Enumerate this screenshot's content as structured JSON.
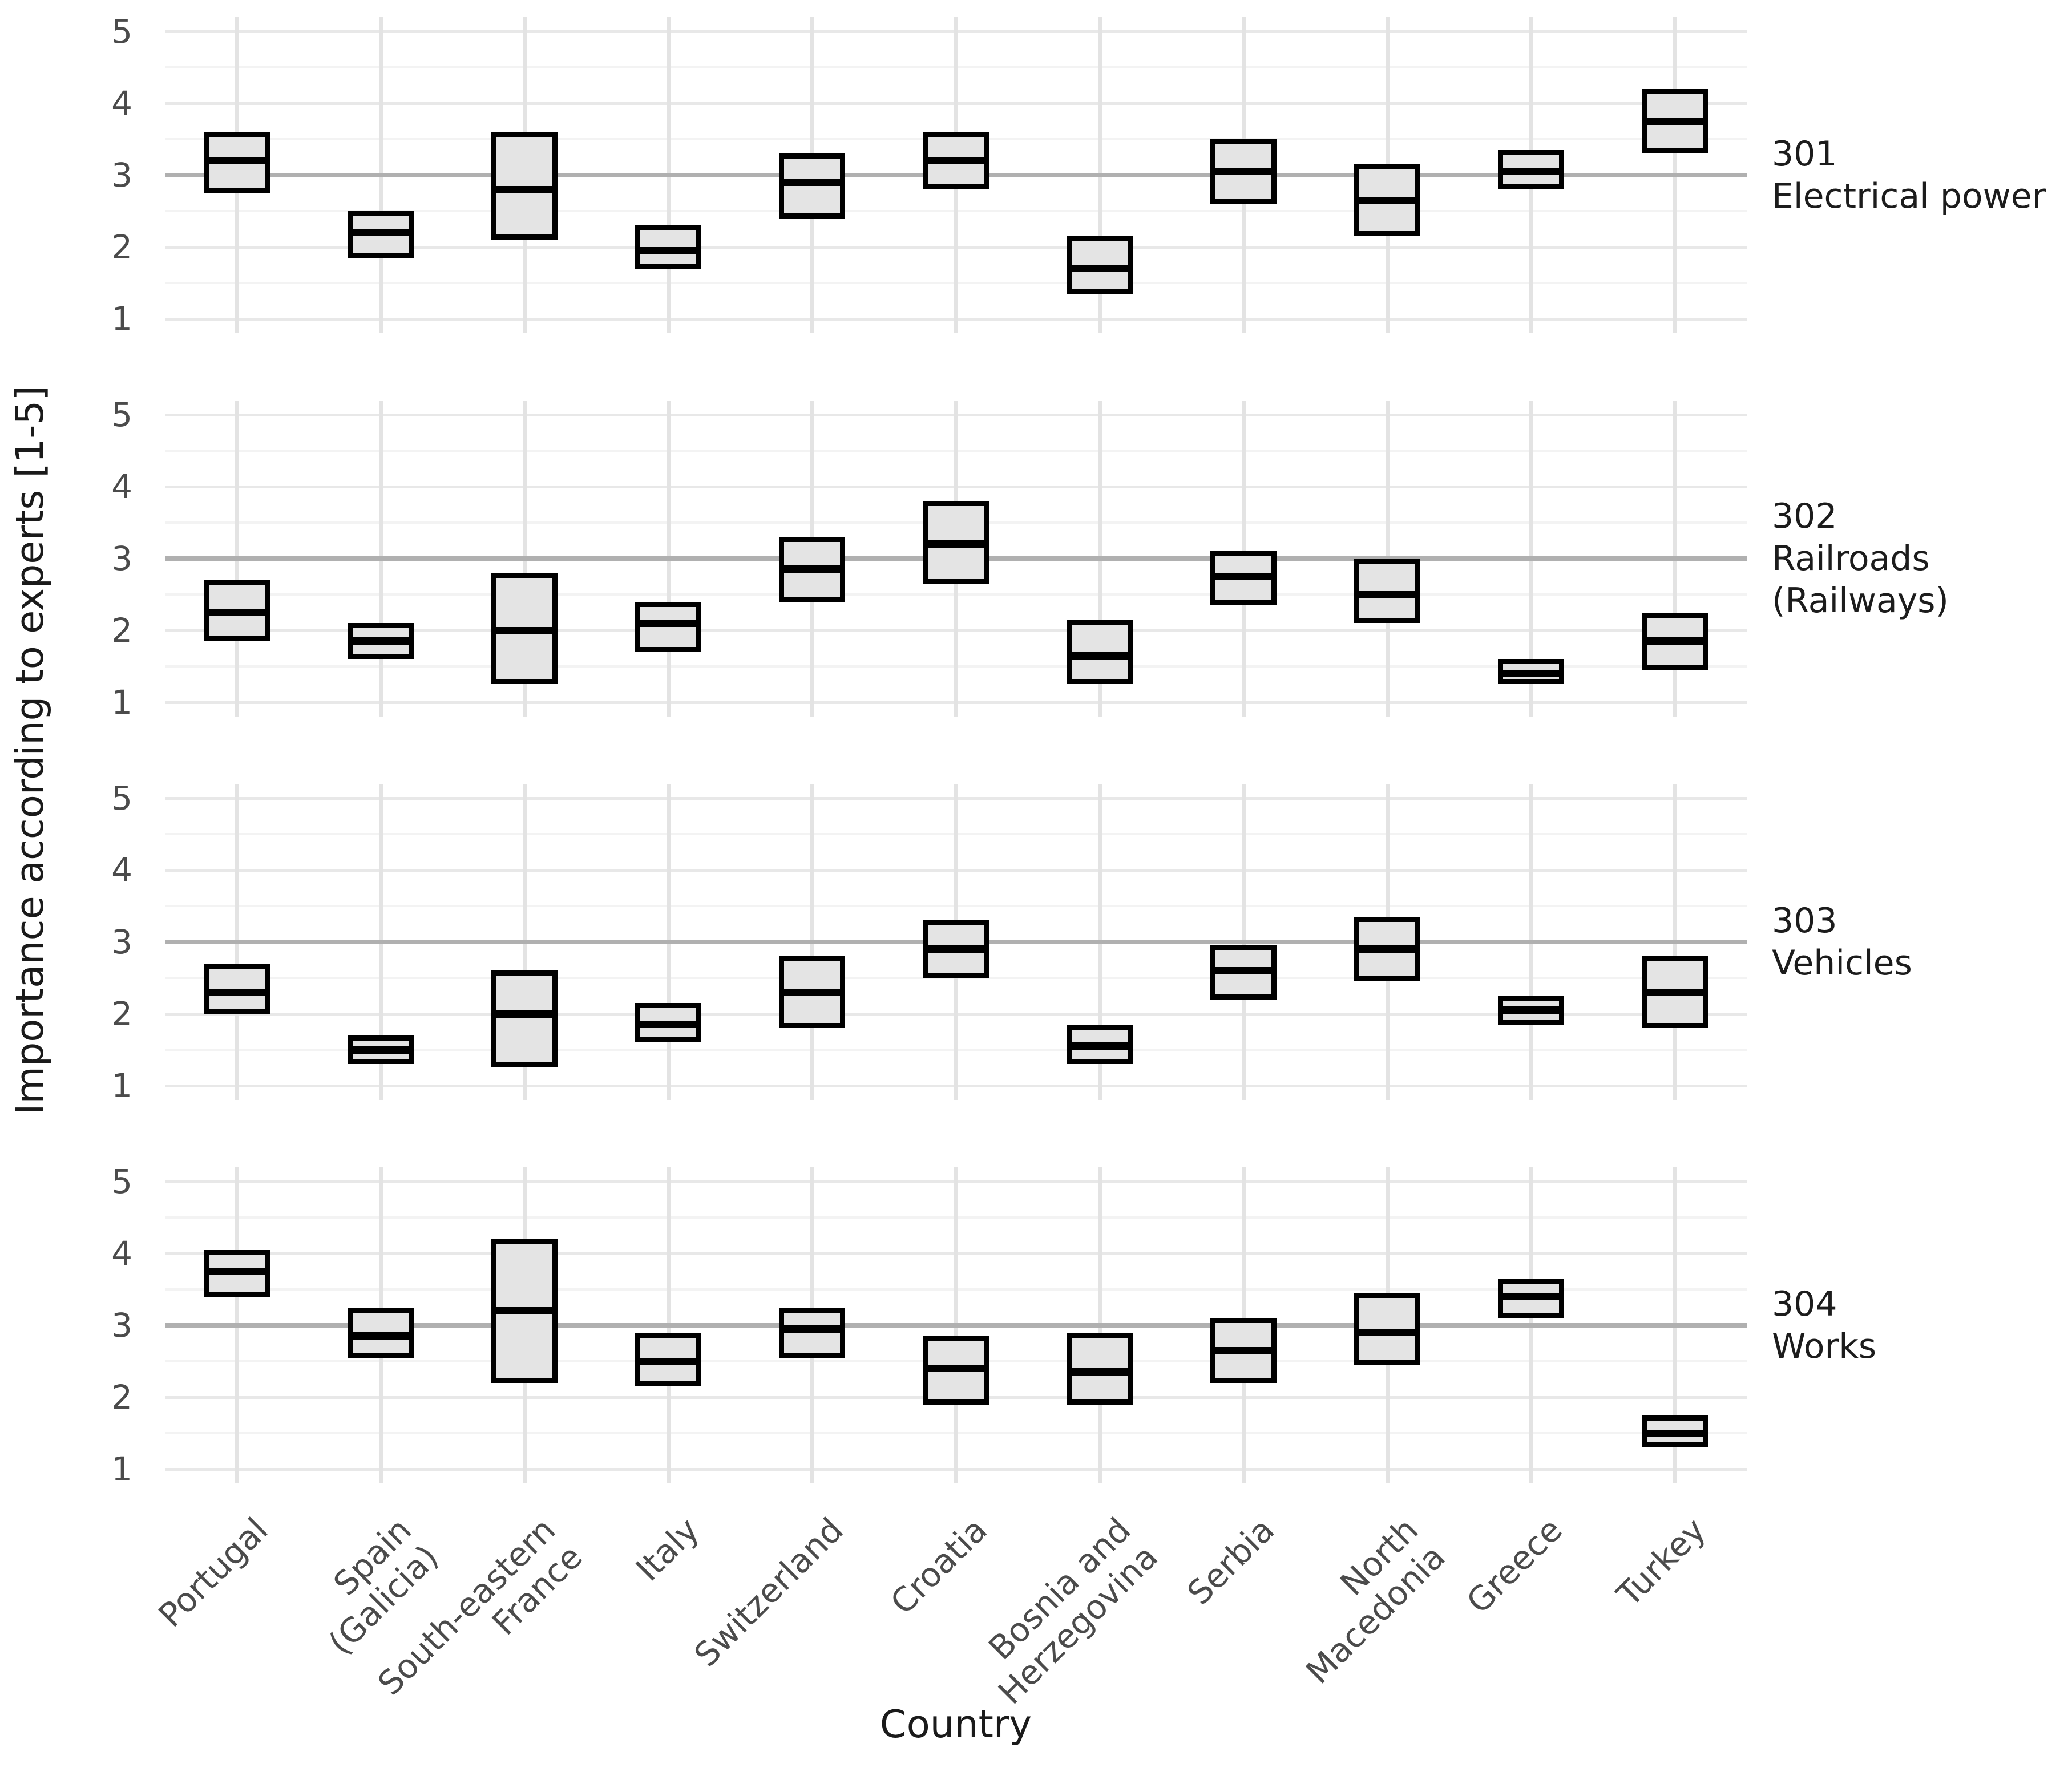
{
  "axes": {
    "y_title": "Importance according to experts [1-5]",
    "x_title": "Country",
    "y_tick_labels": [
      "5",
      "4",
      "3",
      "2",
      "1"
    ]
  },
  "chart_data": {
    "type": "crossbar",
    "description": "Faceted crossbar chart: median importance (thick line) with lower/upper range boxes, per country, one panel per infrastructure category; gray horizontal reference line at 3 in every panel.",
    "ylim": [
      1,
      5
    ],
    "y_major_ticks": [
      1,
      2,
      3,
      4,
      5
    ],
    "y_minor_ticks": [
      1.5,
      2.5,
      3.5,
      4.5
    ],
    "reference_line": 3,
    "grid": "on",
    "categories": [
      "Portugal",
      "Spain (Galicia)",
      "South-eastern France",
      "Italy",
      "Switzerland",
      "Croatia",
      "Bosnia and Herzegovina",
      "Serbia",
      "North Macedonia",
      "Greece",
      "Turkey"
    ],
    "category_label_lines": [
      [
        "Portugal"
      ],
      [
        "Spain",
        "(Galicia)"
      ],
      [
        "South-eastern",
        "France"
      ],
      [
        "Italy"
      ],
      [
        "Switzerland"
      ],
      [
        "Croatia"
      ],
      [
        "Bosnia and",
        "Herzegovina"
      ],
      [
        "Serbia"
      ],
      [
        "North",
        "Macedonia"
      ],
      [
        "Greece"
      ],
      [
        "Turkey"
      ]
    ],
    "facets": [
      {
        "code": "301",
        "name": "Electrical power",
        "label_lines": [
          "301",
          "Electrical power"
        ],
        "values": [
          {
            "country": "Portugal",
            "lower": 2.75,
            "mid": 3.2,
            "upper": 3.6
          },
          {
            "country": "Spain (Galicia)",
            "lower": 1.85,
            "mid": 2.2,
            "upper": 2.5
          },
          {
            "country": "South-eastern France",
            "lower": 2.1,
            "mid": 2.8,
            "upper": 3.6
          },
          {
            "country": "Italy",
            "lower": 1.7,
            "mid": 1.95,
            "upper": 2.3
          },
          {
            "country": "Switzerland",
            "lower": 2.4,
            "mid": 2.9,
            "upper": 3.3
          },
          {
            "country": "Croatia",
            "lower": 2.8,
            "mid": 3.2,
            "upper": 3.6
          },
          {
            "country": "Bosnia and Herzegovina",
            "lower": 1.35,
            "mid": 1.7,
            "upper": 2.15
          },
          {
            "country": "Serbia",
            "lower": 2.6,
            "mid": 3.05,
            "upper": 3.5
          },
          {
            "country": "North Macedonia",
            "lower": 2.15,
            "mid": 2.65,
            "upper": 3.15
          },
          {
            "country": "Greece",
            "lower": 2.8,
            "mid": 3.05,
            "upper": 3.35
          },
          {
            "country": "Turkey",
            "lower": 3.3,
            "mid": 3.75,
            "upper": 4.2
          }
        ]
      },
      {
        "code": "302",
        "name": "Railroads (Railways)",
        "label_lines": [
          "302",
          "Railroads",
          "(Railways)"
        ],
        "values": [
          {
            "country": "Portugal",
            "lower": 1.85,
            "mid": 2.25,
            "upper": 2.7
          },
          {
            "country": "Spain (Galicia)",
            "lower": 1.6,
            "mid": 1.85,
            "upper": 2.1
          },
          {
            "country": "South-eastern France",
            "lower": 1.25,
            "mid": 2.0,
            "upper": 2.8
          },
          {
            "country": "Italy",
            "lower": 1.7,
            "mid": 2.1,
            "upper": 2.4
          },
          {
            "country": "Switzerland",
            "lower": 2.4,
            "mid": 2.85,
            "upper": 3.3
          },
          {
            "country": "Croatia",
            "lower": 2.65,
            "mid": 3.2,
            "upper": 3.8
          },
          {
            "country": "Bosnia and Herzegovina",
            "lower": 1.25,
            "mid": 1.65,
            "upper": 2.15
          },
          {
            "country": "Serbia",
            "lower": 2.35,
            "mid": 2.75,
            "upper": 3.1
          },
          {
            "country": "North Macedonia",
            "lower": 2.1,
            "mid": 2.5,
            "upper": 3.0
          },
          {
            "country": "Greece",
            "lower": 1.25,
            "mid": 1.4,
            "upper": 1.6
          },
          {
            "country": "Turkey",
            "lower": 1.45,
            "mid": 1.85,
            "upper": 2.25
          }
        ]
      },
      {
        "code": "303",
        "name": "Vehicles",
        "label_lines": [
          "303",
          "Vehicles"
        ],
        "values": [
          {
            "country": "Portugal",
            "lower": 2.0,
            "mid": 2.3,
            "upper": 2.7
          },
          {
            "country": "Spain (Galicia)",
            "lower": 1.3,
            "mid": 1.5,
            "upper": 1.7
          },
          {
            "country": "South-eastern France",
            "lower": 1.25,
            "mid": 2.0,
            "upper": 2.6
          },
          {
            "country": "Italy",
            "lower": 1.6,
            "mid": 1.85,
            "upper": 2.15
          },
          {
            "country": "Switzerland",
            "lower": 1.8,
            "mid": 2.3,
            "upper": 2.8
          },
          {
            "country": "Croatia",
            "lower": 2.5,
            "mid": 2.9,
            "upper": 3.3
          },
          {
            "country": "Bosnia and Herzegovina",
            "lower": 1.3,
            "mid": 1.55,
            "upper": 1.85
          },
          {
            "country": "Serbia",
            "lower": 2.2,
            "mid": 2.6,
            "upper": 2.95
          },
          {
            "country": "North Macedonia",
            "lower": 2.45,
            "mid": 2.9,
            "upper": 3.35
          },
          {
            "country": "Greece",
            "lower": 1.85,
            "mid": 2.05,
            "upper": 2.25
          },
          {
            "country": "Turkey",
            "lower": 1.8,
            "mid": 2.3,
            "upper": 2.8
          }
        ]
      },
      {
        "code": "304",
        "name": "Works",
        "label_lines": [
          "304",
          "Works"
        ],
        "values": [
          {
            "country": "Portugal",
            "lower": 3.4,
            "mid": 3.75,
            "upper": 4.05
          },
          {
            "country": "Spain (Galicia)",
            "lower": 2.55,
            "mid": 2.85,
            "upper": 3.25
          },
          {
            "country": "South-eastern France",
            "lower": 2.2,
            "mid": 3.2,
            "upper": 4.2
          },
          {
            "country": "Italy",
            "lower": 2.15,
            "mid": 2.5,
            "upper": 2.9
          },
          {
            "country": "Switzerland",
            "lower": 2.55,
            "mid": 2.95,
            "upper": 3.25
          },
          {
            "country": "Croatia",
            "lower": 1.9,
            "mid": 2.4,
            "upper": 2.85
          },
          {
            "country": "Bosnia and Herzegovina",
            "lower": 1.9,
            "mid": 2.35,
            "upper": 2.9
          },
          {
            "country": "Serbia",
            "lower": 2.2,
            "mid": 2.65,
            "upper": 3.1
          },
          {
            "country": "North Macedonia",
            "lower": 2.45,
            "mid": 2.9,
            "upper": 3.45
          },
          {
            "country": "Greece",
            "lower": 3.1,
            "mid": 3.4,
            "upper": 3.65
          },
          {
            "country": "Turkey",
            "lower": 1.3,
            "mid": 1.5,
            "upper": 1.75
          }
        ]
      }
    ],
    "style": {
      "box_fill": "#e4e4e4",
      "box_border": "#000000",
      "mid_line_color": "#000000",
      "reference_line_color": "#b0b0b0",
      "grid_major_color": "#e8e8e8",
      "grid_minor_color": "#f3f3f3",
      "vgrid_color": "#e3e3e3",
      "tick_label_color": "#4b4b4b",
      "text_color": "#1c1c1c",
      "background": "#ffffff"
    }
  }
}
